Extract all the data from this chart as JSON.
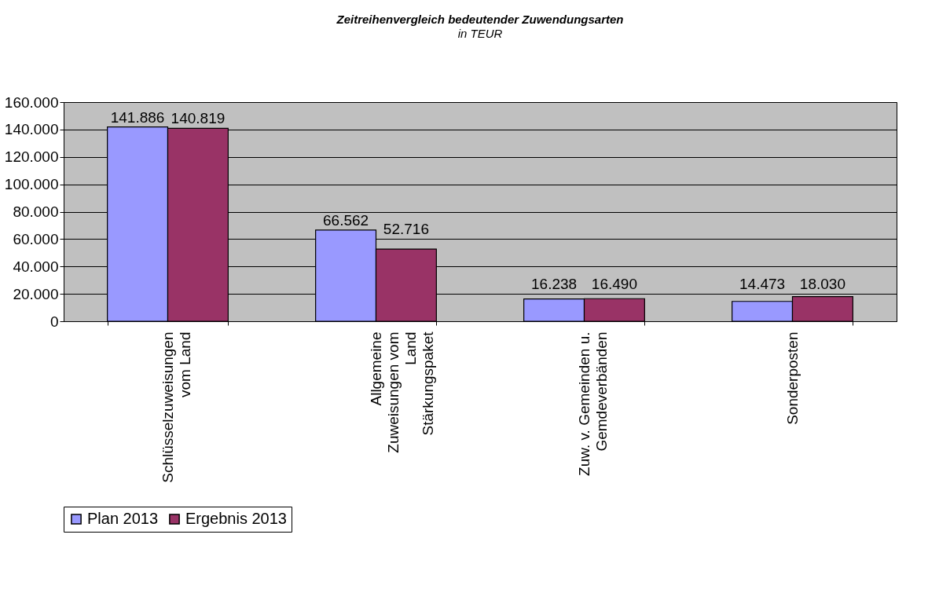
{
  "chart_data": {
    "type": "bar",
    "title": "Zeitreihenvergleich bedeutender Zuwendungsarten",
    "subtitle": "in TEUR",
    "categories": [
      "Schlüsselzuweisungen\nvom Land",
      "Allgemeine\nZuweisungen vom\nLand\nStärkungspaket",
      "Zuw. v. Gemeinden u.\nGemdeverbänden",
      "Sonderposten"
    ],
    "series": [
      {
        "name": "Plan 2013",
        "color": "#9999ff",
        "values": [
          141886,
          66562,
          16238,
          14473
        ],
        "value_labels": [
          "141.886",
          "66.562",
          "16.238",
          "14.473"
        ]
      },
      {
        "name": "Ergebnis 2013",
        "color": "#993366",
        "values": [
          140819,
          52716,
          16490,
          18030
        ],
        "value_labels": [
          "140.819",
          "52.716",
          "16.490",
          "18.030"
        ]
      }
    ],
    "ylim": [
      0,
      160000
    ],
    "yticks": [
      0,
      {
        "value": 20000,
        "label": "20.000"
      },
      {
        "value": 40000,
        "label": "40.000"
      },
      {
        "value": 60000,
        "label": "60.000"
      },
      {
        "value": 80000,
        "label": "80.000"
      },
      {
        "value": 100000,
        "label": "100.000"
      },
      {
        "value": 120000,
        "label": "120.000"
      },
      {
        "value": 140000,
        "label": "140.000"
      },
      {
        "value": 160000,
        "label": "160.000"
      }
    ],
    "grid": "y",
    "legend": "bottom",
    "data_labels": true
  }
}
